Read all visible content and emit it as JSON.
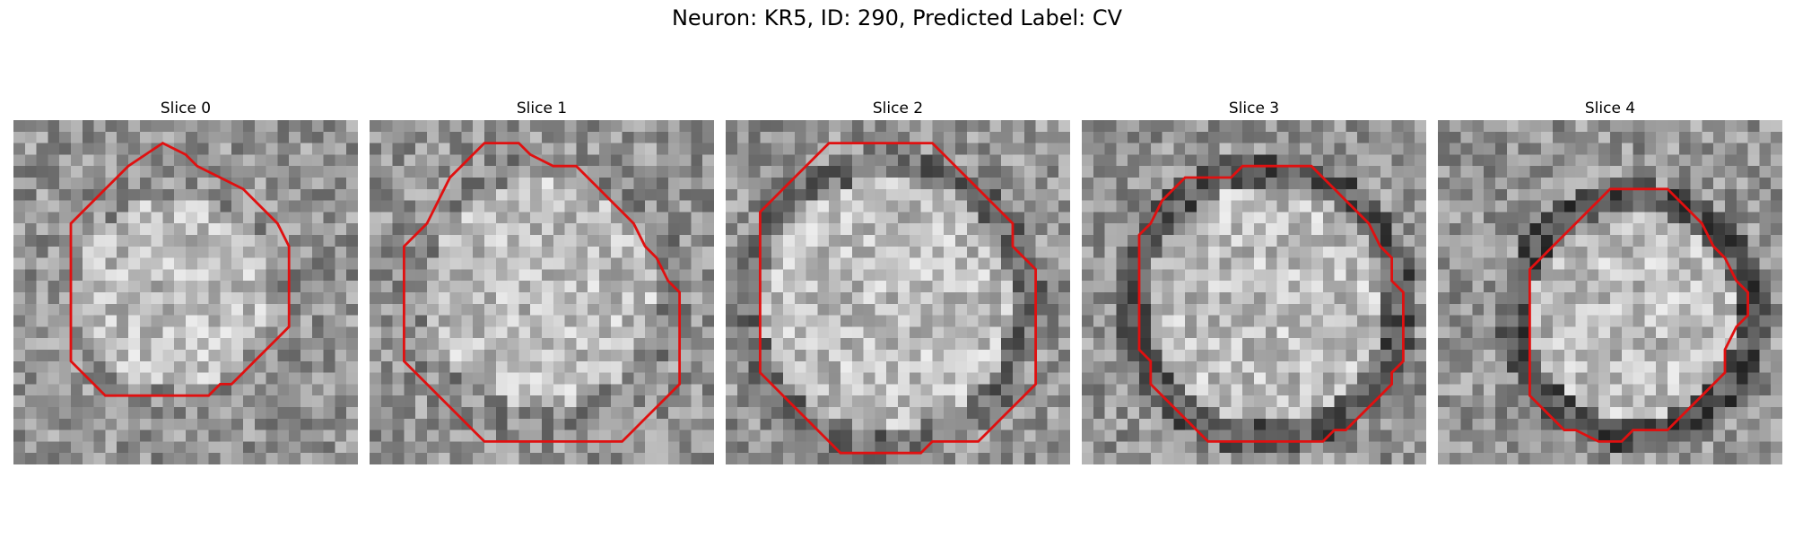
{
  "figure": {
    "title": "Neuron: KR5, ID: 290, Predicted Label: CV"
  },
  "panels": [
    {
      "title": "Slice 0",
      "seed": 11,
      "contour_color": "#e01010"
    },
    {
      "title": "Slice 1",
      "seed": 23,
      "contour_color": "#e01010"
    },
    {
      "title": "Slice 2",
      "seed": 37,
      "contour_color": "#e01010"
    },
    {
      "title": "Slice 3",
      "seed": 53,
      "contour_color": "#e01010"
    },
    {
      "title": "Slice 4",
      "seed": 71,
      "contour_color": "#e01010"
    }
  ]
}
